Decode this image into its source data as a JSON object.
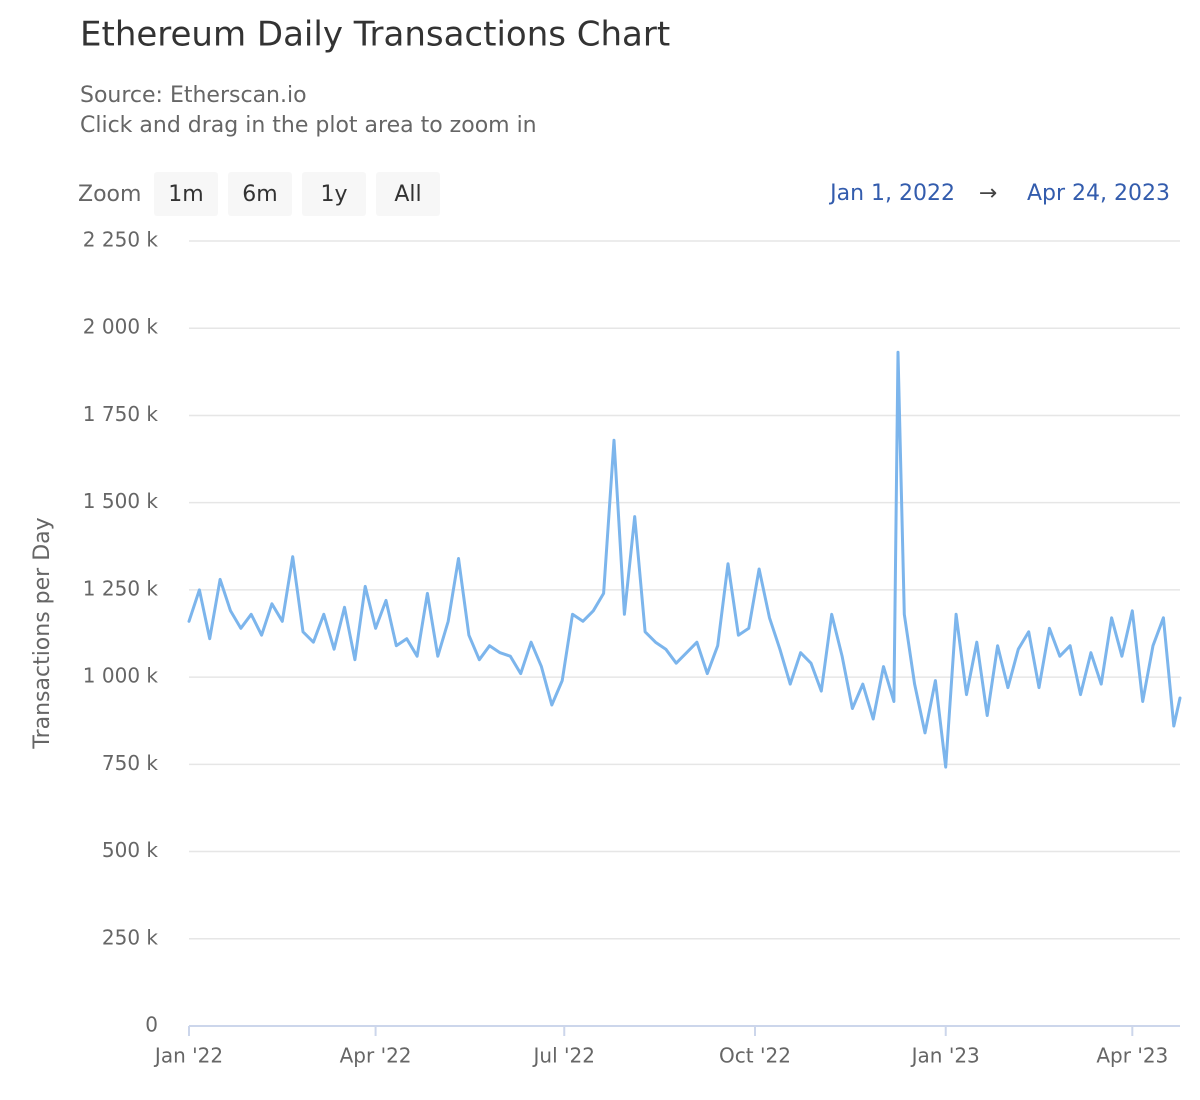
{
  "chart_data": {
    "type": "line",
    "title": "Ethereum Daily Transactions Chart",
    "subtitle": [
      "Source: Etherscan.io",
      "Click and drag in the plot area to zoom in"
    ],
    "zoom_label": "Zoom",
    "zoom_buttons": [
      "1m",
      "6m",
      "1y",
      "All"
    ],
    "range": {
      "from": "Jan 1, 2022",
      "separator": "→",
      "to": "Apr 24, 2023"
    },
    "y_label": "Transactions per Day",
    "grid": true,
    "xlim": [
      "2022-01-01",
      "2023-04-24"
    ],
    "xticks": [
      {
        "value": "2022-01-01",
        "label": "Jan '22"
      },
      {
        "value": "2022-04-01",
        "label": "Apr '22"
      },
      {
        "value": "2022-07-01",
        "label": "Jul '22"
      },
      {
        "value": "2022-10-01",
        "label": "Oct '22"
      },
      {
        "value": "2023-01-01",
        "label": "Jan '23"
      },
      {
        "value": "2023-04-01",
        "label": "Apr '23"
      }
    ],
    "ylim": [
      0,
      2250000
    ],
    "yticks": [
      0,
      {
        "value": 250000,
        "label": "250 k"
      },
      {
        "value": 500000,
        "label": "500 k"
      },
      {
        "value": 750000,
        "label": "750 k"
      },
      {
        "value": 1000000,
        "label": "1 000 k"
      },
      {
        "value": 1250000,
        "label": "1 250 k"
      },
      {
        "value": 1500000,
        "label": "1 500 k"
      },
      {
        "value": 1750000,
        "label": "1 750 k"
      },
      {
        "value": 2000000,
        "label": "2 000 k"
      },
      {
        "value": 2250000,
        "label": "2 250 k"
      }
    ],
    "x": [
      "2022-01-01",
      "2022-01-06",
      "2022-01-11",
      "2022-01-16",
      "2022-01-21",
      "2022-01-26",
      "2022-01-31",
      "2022-02-05",
      "2022-02-10",
      "2022-02-15",
      "2022-02-20",
      "2022-02-25",
      "2022-03-02",
      "2022-03-07",
      "2022-03-12",
      "2022-03-17",
      "2022-03-22",
      "2022-03-27",
      "2022-04-01",
      "2022-04-06",
      "2022-04-11",
      "2022-04-16",
      "2022-04-21",
      "2022-04-26",
      "2022-05-01",
      "2022-05-06",
      "2022-05-11",
      "2022-05-16",
      "2022-05-21",
      "2022-05-26",
      "2022-05-31",
      "2022-06-05",
      "2022-06-10",
      "2022-06-15",
      "2022-06-20",
      "2022-06-25",
      "2022-06-30",
      "2022-07-05",
      "2022-07-10",
      "2022-07-15",
      "2022-07-20",
      "2022-07-25",
      "2022-07-30",
      "2022-08-04",
      "2022-08-09",
      "2022-08-14",
      "2022-08-19",
      "2022-08-24",
      "2022-08-29",
      "2022-09-03",
      "2022-09-08",
      "2022-09-13",
      "2022-09-18",
      "2022-09-23",
      "2022-09-28",
      "2022-10-03",
      "2022-10-08",
      "2022-10-13",
      "2022-10-18",
      "2022-10-23",
      "2022-10-28",
      "2022-11-02",
      "2022-11-07",
      "2022-11-12",
      "2022-11-17",
      "2022-11-22",
      "2022-11-27",
      "2022-12-02",
      "2022-12-07",
      "2022-12-09",
      "2022-12-12",
      "2022-12-17",
      "2022-12-22",
      "2022-12-27",
      "2023-01-01",
      "2023-01-06",
      "2023-01-11",
      "2023-01-16",
      "2023-01-21",
      "2023-01-26",
      "2023-01-31",
      "2023-02-05",
      "2023-02-10",
      "2023-02-15",
      "2023-02-20",
      "2023-02-25",
      "2023-03-02",
      "2023-03-07",
      "2023-03-12",
      "2023-03-17",
      "2023-03-22",
      "2023-03-27",
      "2023-04-01",
      "2023-04-06",
      "2023-04-11",
      "2023-04-16",
      "2023-04-21",
      "2023-04-24"
    ],
    "series": [
      {
        "name": "Transactions per Day",
        "color": "#7cb5ec",
        "values": [
          1160000,
          1250000,
          1110000,
          1280000,
          1190000,
          1140000,
          1180000,
          1120000,
          1210000,
          1160000,
          1345000,
          1130000,
          1100000,
          1180000,
          1080000,
          1200000,
          1050000,
          1260000,
          1140000,
          1220000,
          1090000,
          1110000,
          1060000,
          1240000,
          1060000,
          1160000,
          1340000,
          1120000,
          1050000,
          1090000,
          1070000,
          1060000,
          1010000,
          1100000,
          1030000,
          920000,
          990000,
          1180000,
          1160000,
          1190000,
          1240000,
          1679000,
          1180000,
          1460000,
          1130000,
          1100000,
          1080000,
          1040000,
          1070000,
          1100000,
          1010000,
          1090000,
          1325000,
          1120000,
          1140000,
          1310000,
          1170000,
          1080000,
          980000,
          1070000,
          1040000,
          960000,
          1180000,
          1060000,
          910000,
          980000,
          880000,
          1030000,
          930000,
          1931000,
          1180000,
          980000,
          840000,
          990000,
          742000,
          1180000,
          950000,
          1100000,
          890000,
          1090000,
          970000,
          1080000,
          1130000,
          970000,
          1140000,
          1060000,
          1090000,
          950000,
          1070000,
          980000,
          1170000,
          1060000,
          1190000,
          930000,
          1090000,
          1170000,
          860000,
          940000
        ]
      }
    ]
  }
}
